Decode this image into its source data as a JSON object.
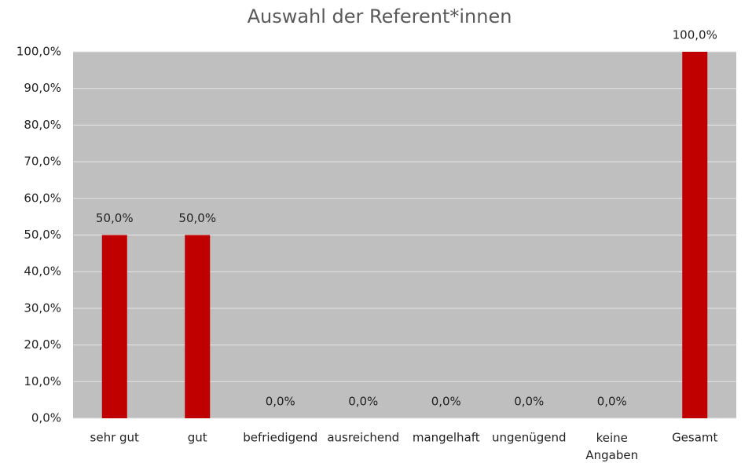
{
  "chart_data": {
    "type": "bar",
    "title": "Auswahl der Referent*innen",
    "categories": [
      "sehr gut",
      "gut",
      "befriedigend",
      "ausreichend",
      "mangelhaft",
      "ungenügend",
      "keine Angaben",
      "Gesamt"
    ],
    "values": [
      50,
      50,
      0,
      0,
      0,
      0,
      0,
      100
    ],
    "value_labels": [
      "50,0%",
      "50,0%",
      "0,0%",
      "0,0%",
      "0,0%",
      "0,0%",
      "0,0%",
      "100,0%"
    ],
    "color": "#c00000",
    "ylim": [
      0,
      100
    ],
    "yticks": [
      {
        "value": 0,
        "label": "0,0%"
      },
      {
        "value": 10,
        "label": "10,0%"
      },
      {
        "value": 20,
        "label": "20,0%"
      },
      {
        "value": 30,
        "label": "30,0%"
      },
      {
        "value": 40,
        "label": "40,0%"
      },
      {
        "value": 50,
        "label": "50,0%"
      },
      {
        "value": 60,
        "label": "60,0%"
      },
      {
        "value": 70,
        "label": "70,0%"
      },
      {
        "value": 80,
        "label": "80,0%"
      },
      {
        "value": 90,
        "label": "90,0%"
      },
      {
        "value": 100,
        "label": "100,0%"
      }
    ],
    "grid": true
  }
}
